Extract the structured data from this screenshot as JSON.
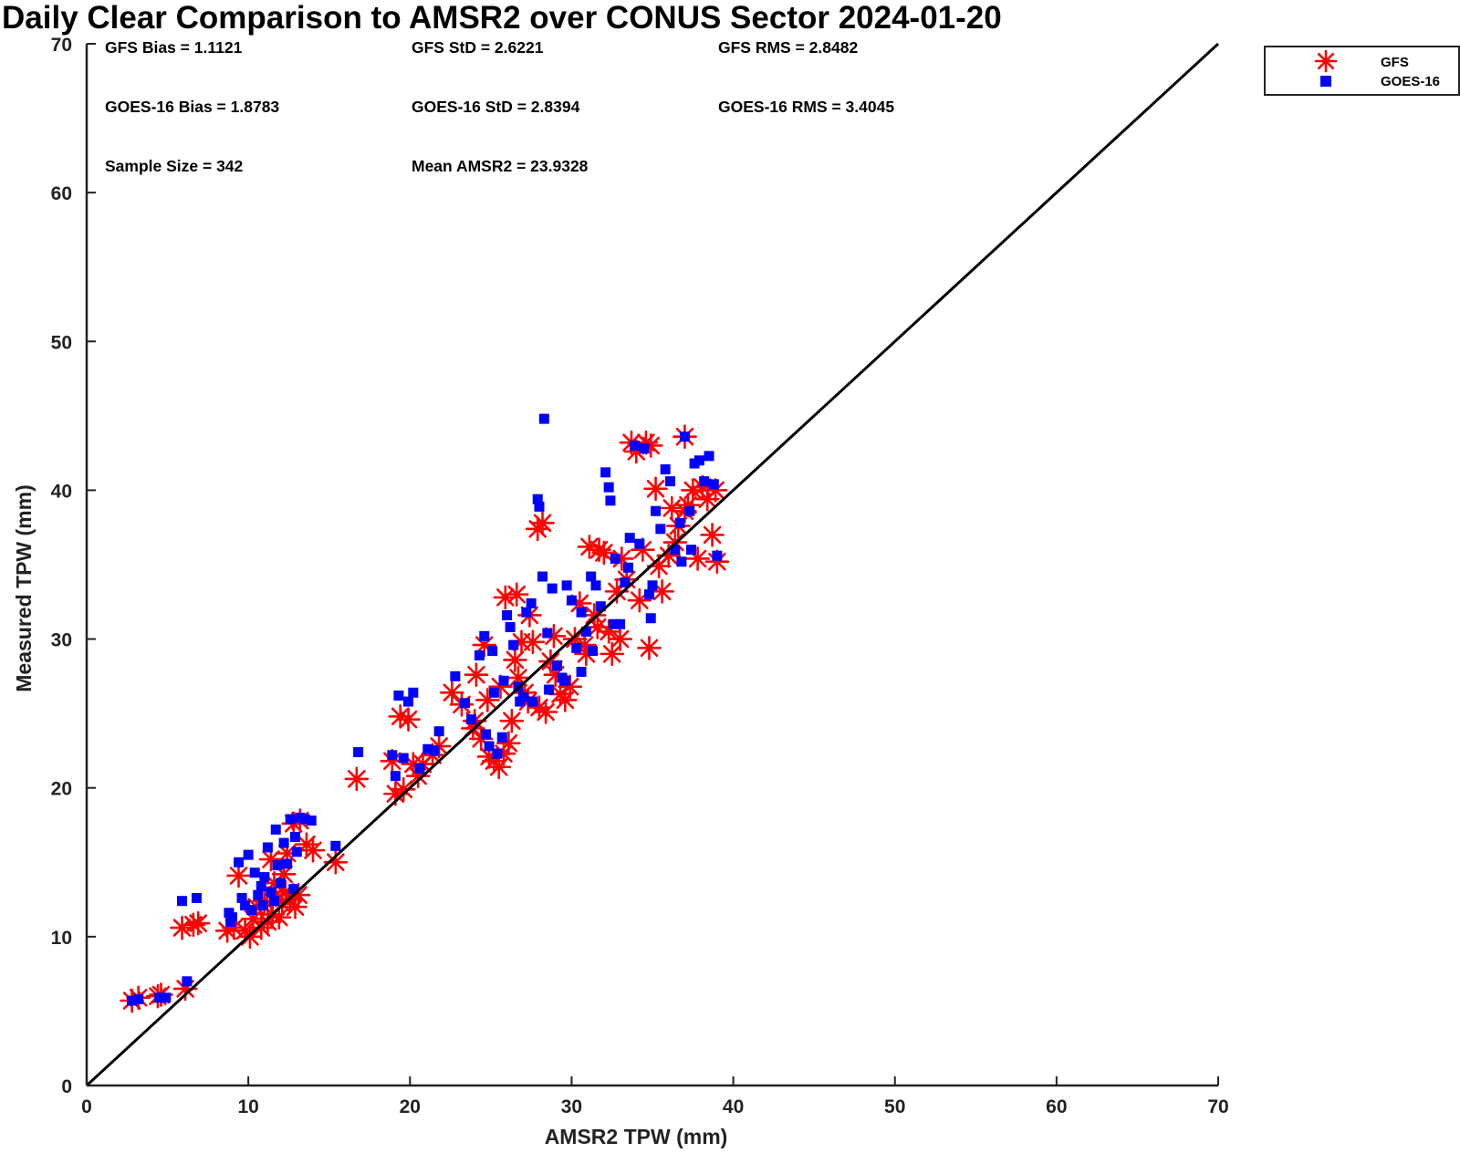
{
  "chart_data": {
    "type": "scatter",
    "title": "Daily Clear Comparison to AMSR2 over CONUS Sector 2024-01-20",
    "xlabel": "AMSR2 TPW (mm)",
    "ylabel": "Measured TPW (mm)",
    "xlim": [
      0,
      70
    ],
    "ylim": [
      0,
      70
    ],
    "xticks": [
      "0",
      "10",
      "20",
      "30",
      "40",
      "50",
      "60",
      "70"
    ],
    "yticks": [
      "0",
      "10",
      "20",
      "30",
      "40",
      "50",
      "60",
      "70"
    ],
    "grid": false,
    "legend_position": "top-right outside",
    "reference_line": {
      "x": [
        0,
        70
      ],
      "y": [
        0,
        70
      ],
      "color": "#000000"
    },
    "stats": [
      {
        "text": "GFS Bias = 1.1121"
      },
      {
        "text": "GFS StD = 2.6221"
      },
      {
        "text": "GFS RMS = 2.8482"
      },
      {
        "text": "GOES-16 Bias = 1.8783"
      },
      {
        "text": "GOES-16 StD = 2.8394"
      },
      {
        "text": "GOES-16 RMS = 3.4045"
      },
      {
        "text": "Sample Size = 342"
      },
      {
        "text": "Mean AMSR2 = 23.9328"
      }
    ],
    "series": [
      {
        "name": "GFS",
        "marker": "asterisk",
        "color": "#ff0000",
        "points": [
          [
            2.8,
            5.7
          ],
          [
            3.2,
            5.9
          ],
          [
            4.4,
            6.0
          ],
          [
            4.6,
            6.1
          ],
          [
            5.9,
            10.6
          ],
          [
            6.1,
            6.5
          ],
          [
            6.6,
            10.8
          ],
          [
            6.9,
            10.9
          ],
          [
            8.7,
            10.4
          ],
          [
            9.1,
            10.6
          ],
          [
            9.4,
            14.1
          ],
          [
            9.8,
            10.4
          ],
          [
            10.1,
            10.0
          ],
          [
            10.3,
            11.2
          ],
          [
            10.5,
            12.0
          ],
          [
            10.8,
            10.6
          ],
          [
            11.0,
            12.4
          ],
          [
            11.2,
            11.0
          ],
          [
            11.5,
            11.5
          ],
          [
            11.7,
            12.8
          ],
          [
            11.9,
            11.3
          ],
          [
            12.1,
            12.2
          ],
          [
            12.3,
            13.0
          ],
          [
            12.6,
            12.5
          ],
          [
            12.9,
            12.0
          ],
          [
            13.1,
            12.8
          ],
          [
            12.2,
            14.2
          ],
          [
            11.6,
            13.6
          ],
          [
            11.4,
            15.2
          ],
          [
            12.4,
            15.6
          ],
          [
            12.8,
            17.6
          ],
          [
            13.2,
            17.8
          ],
          [
            13.6,
            16.2
          ],
          [
            14.0,
            15.8
          ],
          [
            15.4,
            15.0
          ],
          [
            16.7,
            20.6
          ],
          [
            18.9,
            21.8
          ],
          [
            19.1,
            19.6
          ],
          [
            19.4,
            24.8
          ],
          [
            19.6,
            19.9
          ],
          [
            19.9,
            24.6
          ],
          [
            20.2,
            21.6
          ],
          [
            20.5,
            20.8
          ],
          [
            20.8,
            21.6
          ],
          [
            21.4,
            22.2
          ],
          [
            21.8,
            22.8
          ],
          [
            22.6,
            26.4
          ],
          [
            23.2,
            25.6
          ],
          [
            23.9,
            24.0
          ],
          [
            24.1,
            27.6
          ],
          [
            24.4,
            23.3
          ],
          [
            24.6,
            29.6
          ],
          [
            24.9,
            22.1
          ],
          [
            25.2,
            21.8
          ],
          [
            25.5,
            21.4
          ],
          [
            25.8,
            22.3
          ],
          [
            26.1,
            23.0
          ],
          [
            25.9,
            32.8
          ],
          [
            26.6,
            33.0
          ],
          [
            26.3,
            24.5
          ],
          [
            26.7,
            27.4
          ],
          [
            27.1,
            26.4
          ],
          [
            27.3,
            25.8
          ],
          [
            27.6,
            29.8
          ],
          [
            27.9,
            37.4
          ],
          [
            28.2,
            37.8
          ],
          [
            28.0,
            25.4
          ],
          [
            28.4,
            25.1
          ],
          [
            28.7,
            28.5
          ],
          [
            29.0,
            27.6
          ],
          [
            29.3,
            26.3
          ],
          [
            29.6,
            25.9
          ],
          [
            29.9,
            26.8
          ],
          [
            30.2,
            30.0
          ],
          [
            30.5,
            32.4
          ],
          [
            30.8,
            29.6
          ],
          [
            31.1,
            36.2
          ],
          [
            31.4,
            31.6
          ],
          [
            31.7,
            36.0
          ],
          [
            32.0,
            35.8
          ],
          [
            32.3,
            30.5
          ],
          [
            32.5,
            29.0
          ],
          [
            32.8,
            33.2
          ],
          [
            33.1,
            35.4
          ],
          [
            33.4,
            34.0
          ],
          [
            33.7,
            43.2
          ],
          [
            34.0,
            42.6
          ],
          [
            34.4,
            36.0
          ],
          [
            34.6,
            43.2
          ],
          [
            34.9,
            43.0
          ],
          [
            34.8,
            29.4
          ],
          [
            35.2,
            40.1
          ],
          [
            35.6,
            33.2
          ],
          [
            36.0,
            35.6
          ],
          [
            36.2,
            38.8
          ],
          [
            36.6,
            37.6
          ],
          [
            37.0,
            43.6
          ],
          [
            37.2,
            39.0
          ],
          [
            37.5,
            40.0
          ],
          [
            37.8,
            35.4
          ],
          [
            38.1,
            40.2
          ],
          [
            38.4,
            39.4
          ],
          [
            38.7,
            37.0
          ],
          [
            38.9,
            40.0
          ],
          [
            39.0,
            35.2
          ],
          [
            37.0,
            38.6
          ],
          [
            36.4,
            36.5
          ],
          [
            35.4,
            34.9
          ],
          [
            34.2,
            32.6
          ],
          [
            33.0,
            30.0
          ],
          [
            31.6,
            30.8
          ],
          [
            30.9,
            29.0
          ],
          [
            28.9,
            30.2
          ],
          [
            27.4,
            31.6
          ],
          [
            26.9,
            29.8
          ],
          [
            26.5,
            28.6
          ],
          [
            25.6,
            26.8
          ],
          [
            24.8,
            25.9
          ],
          [
            24.0,
            24.5
          ]
        ]
      },
      {
        "name": "GOES-16",
        "marker": "square",
        "color": "#0000ff",
        "points": [
          [
            2.8,
            5.7
          ],
          [
            3.2,
            5.8
          ],
          [
            4.5,
            5.9
          ],
          [
            4.9,
            5.9
          ],
          [
            5.9,
            12.4
          ],
          [
            6.2,
            7.0
          ],
          [
            6.8,
            12.6
          ],
          [
            8.8,
            11.6
          ],
          [
            9.0,
            11.3
          ],
          [
            9.4,
            15.0
          ],
          [
            9.8,
            12.1
          ],
          [
            10.0,
            15.5
          ],
          [
            10.2,
            11.8
          ],
          [
            10.4,
            14.3
          ],
          [
            10.6,
            12.8
          ],
          [
            10.8,
            13.4
          ],
          [
            11.0,
            14.0
          ],
          [
            11.2,
            16.0
          ],
          [
            11.4,
            13.0
          ],
          [
            11.6,
            12.4
          ],
          [
            11.8,
            14.8
          ],
          [
            12.0,
            13.6
          ],
          [
            12.2,
            16.3
          ],
          [
            12.4,
            14.9
          ],
          [
            12.6,
            17.9
          ],
          [
            12.8,
            13.2
          ],
          [
            13.0,
            15.7
          ],
          [
            13.2,
            18.0
          ],
          [
            13.5,
            17.9
          ],
          [
            13.9,
            17.8
          ],
          [
            15.4,
            16.1
          ],
          [
            16.8,
            22.4
          ],
          [
            18.9,
            22.2
          ],
          [
            19.1,
            20.8
          ],
          [
            19.3,
            26.2
          ],
          [
            19.6,
            22.0
          ],
          [
            19.9,
            25.8
          ],
          [
            20.2,
            26.4
          ],
          [
            20.6,
            21.3
          ],
          [
            21.1,
            22.6
          ],
          [
            21.5,
            22.5
          ],
          [
            21.8,
            23.8
          ],
          [
            22.8,
            27.5
          ],
          [
            23.4,
            25.7
          ],
          [
            23.8,
            24.6
          ],
          [
            24.3,
            28.9
          ],
          [
            24.6,
            30.2
          ],
          [
            24.9,
            22.8
          ],
          [
            25.1,
            29.2
          ],
          [
            25.4,
            22.3
          ],
          [
            25.7,
            23.4
          ],
          [
            26.0,
            31.6
          ],
          [
            26.2,
            30.8
          ],
          [
            26.4,
            29.6
          ],
          [
            26.7,
            26.8
          ],
          [
            27.0,
            26.1
          ],
          [
            27.2,
            31.8
          ],
          [
            27.5,
            32.4
          ],
          [
            27.9,
            39.4
          ],
          [
            28.0,
            38.9
          ],
          [
            28.2,
            34.2
          ],
          [
            28.3,
            44.8
          ],
          [
            28.5,
            30.4
          ],
          [
            28.8,
            33.4
          ],
          [
            29.1,
            28.2
          ],
          [
            29.4,
            27.4
          ],
          [
            29.7,
            33.6
          ],
          [
            30.0,
            32.6
          ],
          [
            30.3,
            29.4
          ],
          [
            30.6,
            31.8
          ],
          [
            30.9,
            30.5
          ],
          [
            31.2,
            34.2
          ],
          [
            31.5,
            33.6
          ],
          [
            31.8,
            32.2
          ],
          [
            32.1,
            41.2
          ],
          [
            32.3,
            40.2
          ],
          [
            32.4,
            39.3
          ],
          [
            32.7,
            35.4
          ],
          [
            33.0,
            31.0
          ],
          [
            33.3,
            33.8
          ],
          [
            33.6,
            36.8
          ],
          [
            33.9,
            43.0
          ],
          [
            34.2,
            36.4
          ],
          [
            34.5,
            42.8
          ],
          [
            34.8,
            33.0
          ],
          [
            34.9,
            31.4
          ],
          [
            35.2,
            38.6
          ],
          [
            35.5,
            37.4
          ],
          [
            35.8,
            41.4
          ],
          [
            36.1,
            40.6
          ],
          [
            36.4,
            36.0
          ],
          [
            36.7,
            37.8
          ],
          [
            37.0,
            43.6
          ],
          [
            37.3,
            38.6
          ],
          [
            37.6,
            41.8
          ],
          [
            37.9,
            42.0
          ],
          [
            38.2,
            40.6
          ],
          [
            38.5,
            42.3
          ],
          [
            38.8,
            40.4
          ],
          [
            39.0,
            35.6
          ],
          [
            37.4,
            36.0
          ],
          [
            36.8,
            35.2
          ],
          [
            35.0,
            33.6
          ],
          [
            33.5,
            34.8
          ],
          [
            32.6,
            31.0
          ],
          [
            31.3,
            29.2
          ],
          [
            30.6,
            27.8
          ],
          [
            29.6,
            27.2
          ],
          [
            28.6,
            26.6
          ],
          [
            27.6,
            25.8
          ],
          [
            26.8,
            25.8
          ],
          [
            25.8,
            27.2
          ],
          [
            25.2,
            26.4
          ],
          [
            24.7,
            23.6
          ],
          [
            12.9,
            16.7
          ],
          [
            11.7,
            17.2
          ],
          [
            10.9,
            12.1
          ],
          [
            9.6,
            12.6
          ],
          [
            8.9,
            11.0
          ]
        ]
      }
    ]
  }
}
